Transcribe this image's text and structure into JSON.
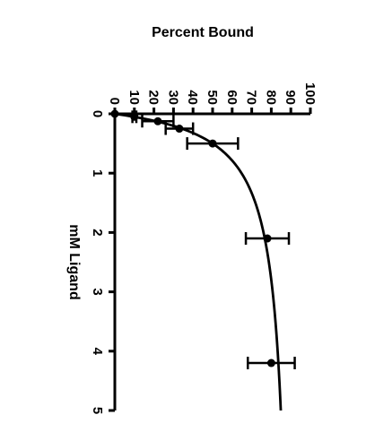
{
  "chart_data": {
    "type": "scatter",
    "title": "",
    "ylabel": "Percent Bound",
    "xlabel": "mM Ligand",
    "xlim": [
      0,
      5
    ],
    "ylim": [
      0,
      100
    ],
    "x_ticks": [
      "0",
      "1",
      "2",
      "3",
      "4",
      "5"
    ],
    "y_ticks": [
      "0",
      "10",
      "20",
      "30",
      "40",
      "50",
      "60",
      "70",
      "80",
      "90",
      "100"
    ],
    "grid": false,
    "legend": "none",
    "series": [
      {
        "points": [
          {
            "x": 0,
            "y": 0,
            "err": 0
          },
          {
            "x": 0.05,
            "y": 10,
            "err": 1
          },
          {
            "x": 0.125,
            "y": 22,
            "err": 8
          },
          {
            "x": 0.25,
            "y": 33,
            "err": 7
          },
          {
            "x": 0.5,
            "y": 50,
            "err": 13
          },
          {
            "x": 2.1,
            "y": 78,
            "err": 11
          },
          {
            "x": 4.2,
            "y": 80,
            "err": 12
          }
        ]
      }
    ],
    "fit_curve": {
      "model": "one-site binding",
      "bmax": 92,
      "kd": 0.42
    }
  },
  "colors": {
    "ink": "#000000",
    "background": "#ffffff"
  }
}
